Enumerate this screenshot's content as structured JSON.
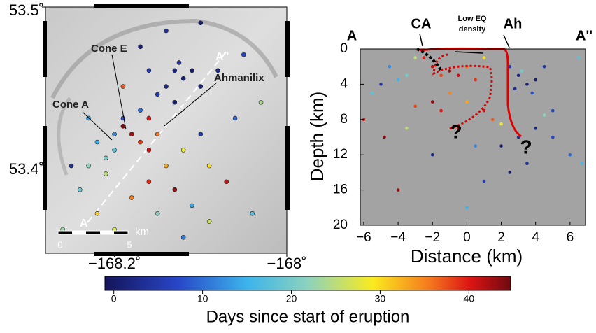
{
  "chart_data": [
    {
      "type": "map",
      "xlim": [
        -168.28,
        -168.0
      ],
      "ylim": [
        53.345,
        53.5
      ],
      "xticks": [
        {
          "value": -168.2,
          "label": "−168.2˚"
        },
        {
          "value": -168,
          "label": "−168˚"
        }
      ],
      "yticks": [
        {
          "value": 53.4,
          "label": "53.4˚"
        },
        {
          "value": 53.5,
          "label": "53.5˚"
        }
      ],
      "annotations": {
        "cone_e": "Cone E",
        "ahmanilix": "Ahmanilix",
        "cone_a": "Cone A",
        "a": "A",
        "a2": "A''",
        "scale_unit": "km",
        "scale_start": "0",
        "scale_end": "5"
      },
      "x": [
        -168.13,
        -168.12,
        -168.14,
        -168.11,
        -168.125,
        -168.1,
        -168.15,
        -168.13,
        -168.16,
        -168.18,
        -168.17,
        -168.19,
        -168.16,
        -168.15,
        -168.2,
        -168.21,
        -168.22,
        -168.2,
        -168.23,
        -168.21,
        -168.19,
        -168.17,
        -168.14,
        -168.12,
        -168.1,
        -168.09,
        -168.13,
        -168.16,
        -168.18,
        -168.24,
        -168.25,
        -168.22,
        -168.2,
        -168.15,
        -168.11,
        -168.07,
        -168.06,
        -168.08,
        -168.05,
        -168.17,
        -168.14,
        -168.1,
        -168.03,
        -168.04,
        -168.26,
        -168.12,
        -168.09,
        -168.19,
        -168.23,
        -168.16
      ],
      "y": [
        53.46,
        53.455,
        53.45,
        53.46,
        53.465,
        53.45,
        53.445,
        53.44,
        53.43,
        53.42,
        53.415,
        53.425,
        53.41,
        53.42,
        53.41,
        53.405,
        53.415,
        53.42,
        53.4,
        53.395,
        53.43,
        53.435,
        53.4,
        53.41,
        53.42,
        53.4,
        53.385,
        53.39,
        53.38,
        53.385,
        53.4,
        53.37,
        53.36,
        53.37,
        53.375,
        53.39,
        53.43,
        53.46,
        53.47,
        53.475,
        53.485,
        53.49,
        53.44,
        53.37,
        53.36,
        53.355,
        53.365,
        53.45,
        53.43,
        53.46
      ],
      "days": [
        2,
        1,
        3,
        0,
        4,
        2,
        6,
        1,
        40,
        42,
        38,
        44,
        41,
        36,
        18,
        20,
        15,
        12,
        22,
        25,
        8,
        10,
        33,
        28,
        5,
        30,
        43,
        39,
        35,
        19,
        3,
        31,
        27,
        21,
        14,
        41,
        9,
        2,
        7,
        1,
        4,
        0,
        24,
        17,
        23,
        11,
        26,
        37,
        13,
        5
      ]
    },
    {
      "type": "scatter",
      "x_label": "Distance (km)",
      "y_label": "Depth (km)",
      "xlim": [
        -6.2,
        6.9
      ],
      "ylim": [
        20,
        0
      ],
      "xticks": [
        {
          "value": -6,
          "label": "−6"
        },
        {
          "value": -4,
          "label": "−4"
        },
        {
          "value": -2,
          "label": "−2"
        },
        0,
        2,
        4,
        6
      ],
      "yticks": [
        0,
        4,
        8,
        12,
        16,
        20
      ],
      "annotations": {
        "a": "A",
        "ca": "CA",
        "low_eq_density": [
          "Low EQ",
          "density"
        ],
        "ah": "Ah",
        "a2": "A''",
        "q1": "?",
        "q2": "?"
      },
      "x": [
        -2.5,
        -2,
        -1.5,
        -1,
        -0.5,
        0,
        0.5,
        1,
        -3,
        -3.5,
        -4,
        -4.5,
        -5,
        -6,
        -5.5,
        -2,
        -1,
        0,
        1,
        1.5,
        2.5,
        3,
        3.5,
        4,
        2.8,
        3.2,
        3.8,
        4.5,
        5,
        4,
        3,
        2,
        5,
        3.5,
        2.5,
        6,
        6.7,
        -3.5,
        -4.8,
        -2,
        -0.5,
        0.5,
        1,
        -4,
        0,
        2,
        -3,
        -1.5,
        4.5,
        6.5
      ],
      "y": [
        1,
        2,
        3,
        2.5,
        3,
        2,
        3.5,
        1,
        1,
        3,
        3.5,
        2,
        4,
        8,
        5,
        6,
        5,
        6,
        7,
        8,
        2,
        3,
        4,
        3.5,
        4.5,
        2.5,
        5,
        2,
        7,
        9,
        10,
        11,
        10,
        13,
        14,
        12,
        13,
        9,
        10,
        12,
        9,
        11,
        15,
        16,
        18,
        8.5,
        6.5,
        7,
        7.5,
        1
      ],
      "days": [
        40,
        42,
        38,
        44,
        41,
        36,
        39,
        30,
        25,
        20,
        15,
        12,
        5,
        40,
        18,
        43,
        35,
        33,
        41,
        37,
        5,
        2,
        1,
        0,
        3,
        20,
        8,
        4,
        6,
        2,
        3,
        1,
        7,
        4,
        0,
        10,
        16,
        25,
        44,
        3,
        42,
        12,
        5,
        43,
        15,
        28,
        38,
        40,
        22,
        18
      ]
    }
  ],
  "colorbar": {
    "label": "Days since start of eruption",
    "lim": [
      -1,
      44.7
    ],
    "ticks": [
      0,
      10,
      20,
      30,
      40
    ]
  }
}
